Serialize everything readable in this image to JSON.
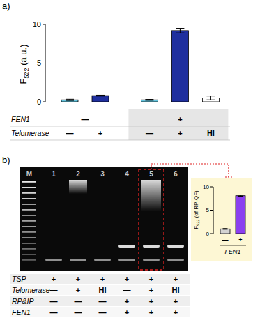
{
  "chart_data": [
    {
      "type": "bar",
      "panel_label": "a)",
      "y_label": {
        "main": "F",
        "sub": "522",
        "suffix": " (a.u.)"
      },
      "categories": [
        null,
        null,
        null,
        null,
        null
      ],
      "series": [
        {
          "values": [
            0.25,
            0.8,
            0.25,
            9.2,
            0.5
          ],
          "errors": [
            0.08,
            0.06,
            0.06,
            0.3,
            0.25
          ],
          "colors": [
            "#66c6e0",
            "#1f2f9e",
            "#66c6e0",
            "#1f2f9e",
            "#ffffff"
          ]
        }
      ],
      "ylim": [
        0,
        10
      ],
      "yticks": [
        0,
        5,
        10
      ],
      "groups": [
        {
          "from": 0,
          "to": 1,
          "shaded": false
        },
        {
          "from": 2,
          "to": 4,
          "shaded": true
        }
      ],
      "conditions": [
        {
          "name": "FEN1",
          "cells": [
            {
              "text": "—",
              "from": 0,
              "to": 1
            },
            {
              "text": "+",
              "from": 3,
              "to": 3
            }
          ]
        },
        {
          "name": "Telomerase",
          "cells": [
            {
              "text": "—",
              "from": 0,
              "to": 0
            },
            {
              "text": "+",
              "from": 1,
              "to": 1
            },
            {
              "text": "—",
              "from": 2,
              "to": 2
            },
            {
              "text": "+",
              "from": 3,
              "to": 3
            },
            {
              "text": "HI",
              "from": 4,
              "to": 4
            }
          ]
        }
      ]
    },
    {
      "type": "bar",
      "y_label": {
        "main": "F",
        "sub": "522",
        "suffix": " (of RP-QF)"
      },
      "categories": [
        "—",
        "+"
      ],
      "x_label": "FEN1",
      "series": [
        {
          "values": [
            1.0,
            8.1
          ],
          "errors": [
            0.08,
            0.12
          ],
          "colors": [
            "#d3d3d3",
            "#8b3ff0"
          ]
        }
      ],
      "ylim": [
        0,
        10
      ],
      "yticks": [
        0,
        5,
        10
      ]
    }
  ],
  "gel": {
    "panel_label": "b)",
    "lanes": [
      "M",
      "1",
      "2",
      "3",
      "4",
      "5",
      "6"
    ],
    "highlight_lane": 5,
    "conditions": [
      {
        "name": "TSP",
        "values": [
          null,
          "+",
          "+",
          "+",
          "+",
          "+",
          "+"
        ]
      },
      {
        "name": "Telomerase",
        "values": [
          null,
          "—",
          "+",
          "HI",
          "—",
          "+",
          "HI"
        ]
      },
      {
        "name": "RP&IP",
        "values": [
          null,
          "—",
          "—",
          "—",
          "+",
          "+",
          "+"
        ]
      },
      {
        "name": "FEN1",
        "values": [
          null,
          "—",
          "—",
          "—",
          "+",
          "+",
          "+"
        ]
      }
    ]
  }
}
